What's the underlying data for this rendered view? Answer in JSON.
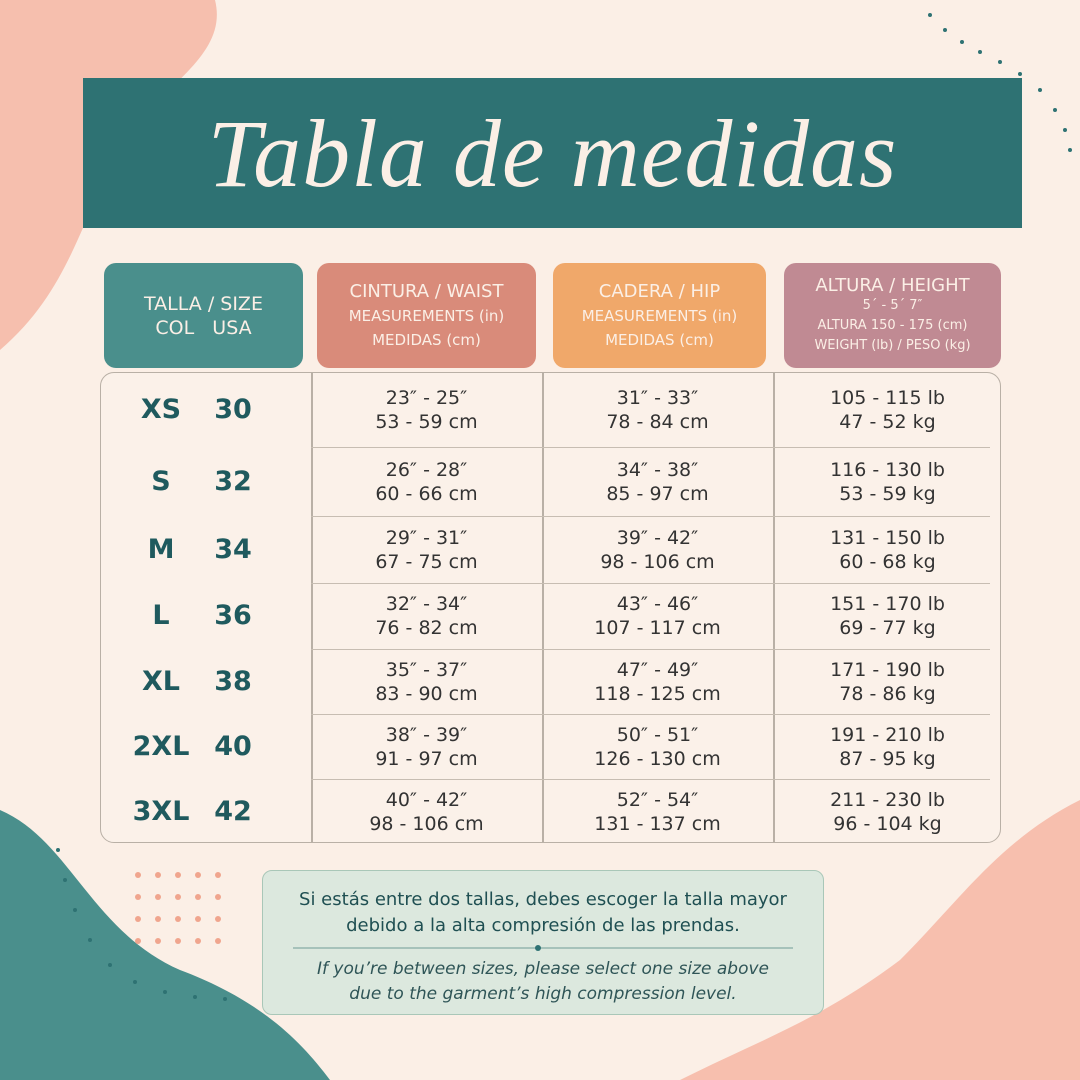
{
  "title": "Tabla de medidas",
  "headers": [
    [
      "TALLA / SIZE",
      "COL   USA"
    ],
    [
      "CINTURA / WAIST",
      "MEASUREMENTS (in)",
      "MEDIDAS (cm)"
    ],
    [
      "CADERA / HIP",
      "MEASUREMENTS (in)",
      "MEDIDAS (cm)"
    ],
    [
      "ALTURA / HEIGHT",
      "5´ - 5´ 7″",
      "ALTURA 150 - 175 (cm)",
      "WEIGHT (lb) / PESO (kg)"
    ]
  ],
  "rows": [
    [
      "XS",
      "30",
      "23″ - 25″",
      "53 - 59 cm",
      "31″ - 33″",
      "78 - 84 cm",
      "105 - 115 lb",
      "47 - 52 kg"
    ],
    [
      "S",
      "32",
      "26″ - 28″",
      "60 - 66 cm",
      "34″ - 38″",
      "85 - 97 cm",
      "116 - 130 lb",
      "53 - 59 kg"
    ],
    [
      "M",
      "34",
      "29″ - 31″",
      "67 - 75 cm",
      "39″ - 42″",
      "98 - 106 cm",
      "131 - 150 lb",
      "60 - 68 kg"
    ],
    [
      "L",
      "36",
      "32″ - 34″",
      "76 - 82 cm",
      "43″ - 46″",
      "107 - 117 cm",
      "151 - 170 lb",
      "69 - 77 kg"
    ],
    [
      "XL",
      "38",
      "35″ - 37″",
      "83 - 90 cm",
      "47″ - 49″",
      "118 - 125 cm",
      "171 - 190 lb",
      "78 - 86 kg"
    ],
    [
      "2XL",
      "40",
      "38″ - 39″",
      "91 - 97 cm",
      "50″ - 51″",
      "126 - 130 cm",
      "191 - 210 lb",
      "87 - 95 kg"
    ],
    [
      "3XL",
      "42",
      "40″ - 42″",
      "98 - 106 cm",
      "52″ - 54″",
      "131 - 137 cm",
      "211 - 230 lb",
      "96 - 104 kg"
    ]
  ],
  "note": {
    "es": [
      "Si estás entre dos tallas, debes escoger la talla mayor",
      "debido a la alta compresión de las prendas."
    ],
    "en": [
      "If you’re between sizes, please select one size above",
      "due to the garment’s high compression level."
    ]
  }
}
